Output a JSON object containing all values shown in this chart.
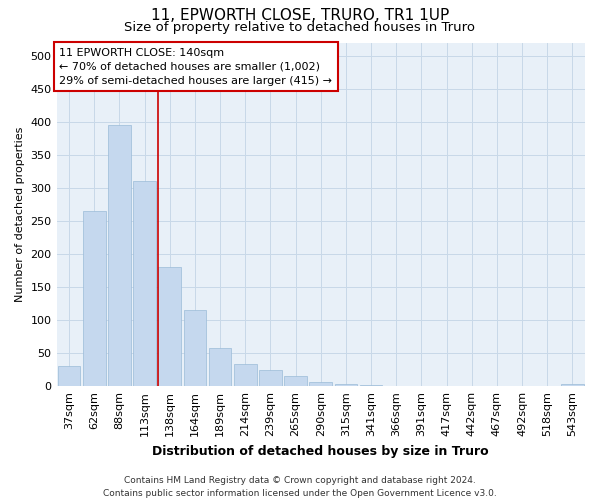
{
  "title": "11, EPWORTH CLOSE, TRURO, TR1 1UP",
  "subtitle": "Size of property relative to detached houses in Truro",
  "xlabel": "Distribution of detached houses by size in Truro",
  "ylabel": "Number of detached properties",
  "categories": [
    "37sqm",
    "62sqm",
    "88sqm",
    "113sqm",
    "138sqm",
    "164sqm",
    "189sqm",
    "214sqm",
    "239sqm",
    "265sqm",
    "290sqm",
    "315sqm",
    "341sqm",
    "366sqm",
    "391sqm",
    "417sqm",
    "442sqm",
    "467sqm",
    "492sqm",
    "518sqm",
    "543sqm"
  ],
  "values": [
    30,
    265,
    395,
    310,
    180,
    115,
    58,
    33,
    25,
    15,
    7,
    3,
    2,
    1,
    1,
    1,
    1,
    0,
    0,
    0,
    4
  ],
  "bar_color": "#c5d8ee",
  "bar_edgecolor": "#9bbbd8",
  "grid_color": "#c8d8e8",
  "background_color": "#ffffff",
  "plot_background_color": "#e8f0f8",
  "vline_x_idx": 4,
  "vline_color": "#cc0000",
  "annotation_line1": "11 EPWORTH CLOSE: 140sqm",
  "annotation_line2": "← 70% of detached houses are smaller (1,002)",
  "annotation_line3": "29% of semi-detached houses are larger (415) →",
  "annotation_box_facecolor": "#ffffff",
  "annotation_box_edgecolor": "#cc0000",
  "ylim": [
    0,
    520
  ],
  "yticks": [
    0,
    50,
    100,
    150,
    200,
    250,
    300,
    350,
    400,
    450,
    500
  ],
  "footer_line1": "Contains HM Land Registry data © Crown copyright and database right 2024.",
  "footer_line2": "Contains public sector information licensed under the Open Government Licence v3.0.",
  "title_fontsize": 11,
  "subtitle_fontsize": 9.5,
  "xlabel_fontsize": 9,
  "ylabel_fontsize": 8,
  "tick_fontsize": 8,
  "annot_fontsize": 8,
  "footer_fontsize": 6.5
}
